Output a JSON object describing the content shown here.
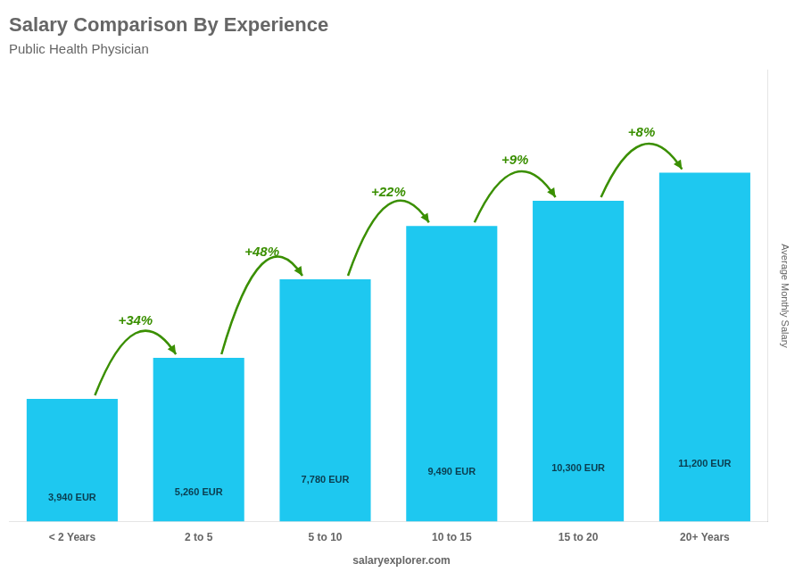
{
  "chart_data": {
    "type": "bar",
    "title": "Salary Comparison By Experience",
    "subtitle": "Public Health Physician",
    "ylabel": "Average Monthly Salary",
    "categories": [
      "< 2 Years",
      "2 to 5",
      "5 to 10",
      "10 to 15",
      "15 to 20",
      "20+ Years"
    ],
    "values": [
      3940,
      5260,
      7780,
      9490,
      10300,
      11200
    ],
    "value_labels": [
      "3,940 EUR",
      "5,260 EUR",
      "7,780 EUR",
      "9,490 EUR",
      "10,300 EUR",
      "11,200 EUR"
    ],
    "data_labels": true,
    "annotations": [
      "+34%",
      "+48%",
      "+22%",
      "+9%",
      "+8%"
    ],
    "source": "salaryexplorer.com",
    "color": "#1ec8f0",
    "ylim": [
      0,
      14500
    ],
    "grid": false,
    "tick_labels": "x"
  }
}
